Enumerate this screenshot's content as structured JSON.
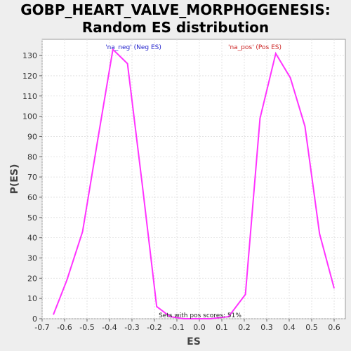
{
  "chart_data": {
    "type": "line",
    "title_line1": "GOBP_HEART_VALVE_MORPHOGENESIS:",
    "title_line2": "Random ES distribution",
    "xlabel": "ES",
    "ylabel": "P(ES)",
    "xlim": [
      -0.7,
      0.65
    ],
    "ylim": [
      0,
      138
    ],
    "xticks": [
      "-0.7",
      "-0.6",
      "-0.5",
      "-0.4",
      "-0.3",
      "-0.2",
      "-0.1",
      "0.0",
      "0.1",
      "0.2",
      "0.3",
      "0.4",
      "0.5",
      "0.6"
    ],
    "yticks": [
      "0",
      "10",
      "20",
      "30",
      "40",
      "50",
      "60",
      "70",
      "80",
      "90",
      "100",
      "110",
      "120",
      "130"
    ],
    "grid": true,
    "line_color": "#ff33ff",
    "series": [
      {
        "x": [
          -0.65,
          -0.59,
          -0.52,
          -0.45,
          -0.385,
          -0.32,
          -0.255,
          -0.19,
          -0.13,
          -0.07,
          -0.01,
          0.05,
          0.13,
          0.205,
          0.27,
          0.34,
          0.405,
          0.47,
          0.535,
          0.6
        ],
        "y": [
          2,
          19,
          43,
          90,
          133,
          126,
          67,
          6,
          1,
          0,
          0,
          0,
          1,
          12,
          99,
          131,
          119,
          95,
          42,
          15
        ]
      }
    ],
    "annotations": {
      "neg_label": "'na_neg' (Neg ES)",
      "neg_color": "#2222cc",
      "pos_label": "'na_pos' (Pos ES)",
      "pos_color": "#cc2222",
      "footer": "Sets with pos scores: 51%"
    }
  }
}
